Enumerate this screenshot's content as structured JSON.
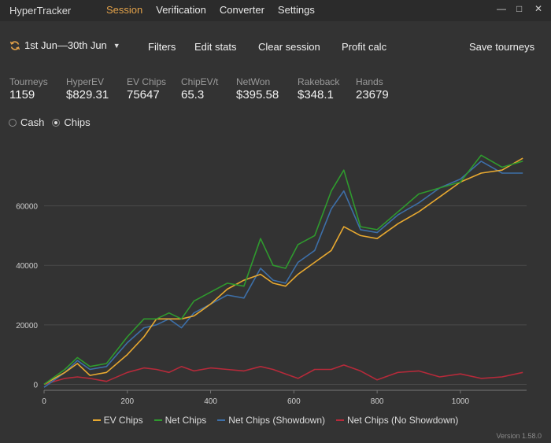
{
  "app_title": "HyperTracker",
  "nav": [
    {
      "label": "Session",
      "active": true
    },
    {
      "label": "Verification",
      "active": false
    },
    {
      "label": "Converter",
      "active": false
    },
    {
      "label": "Settings",
      "active": false
    }
  ],
  "toolbar": {
    "date_range": "1st Jun—30th Jun",
    "filters": "Filters",
    "edit_stats": "Edit stats",
    "clear_session": "Clear session",
    "profit_calc": "Profit calc",
    "save_tourneys": "Save tourneys"
  },
  "stats": [
    {
      "label": "Tourneys",
      "value": "1159"
    },
    {
      "label": "HyperEV",
      "value": "$829.31"
    },
    {
      "label": "EV Chips",
      "value": "75647"
    },
    {
      "label": "ChipEV/t",
      "value": "65.3"
    },
    {
      "label": "NetWon",
      "value": "$395.58"
    },
    {
      "label": "Rakeback",
      "value": "$348.1"
    },
    {
      "label": "Hands",
      "value": "23679"
    }
  ],
  "mode": {
    "options": [
      {
        "label": "Cash",
        "selected": false
      },
      {
        "label": "Chips",
        "selected": true
      }
    ]
  },
  "chart_data": {
    "type": "line",
    "xlim": [
      0,
      1159
    ],
    "ylim": [
      -2000,
      80000
    ],
    "x_ticks": [
      0,
      200,
      400,
      600,
      800,
      1000
    ],
    "y_ticks": [
      0,
      20000,
      40000,
      60000
    ],
    "grid": "horizontal",
    "legend_position": "bottom",
    "series": [
      {
        "name": "EV Chips",
        "color": "#e8a930",
        "x": [
          0,
          50,
          80,
          110,
          150,
          200,
          240,
          270,
          300,
          330,
          360,
          400,
          440,
          480,
          520,
          550,
          580,
          610,
          650,
          690,
          720,
          760,
          800,
          850,
          900,
          950,
          1000,
          1050,
          1100,
          1150
        ],
        "y": [
          0,
          4000,
          7000,
          3000,
          4000,
          10000,
          16000,
          22000,
          22000,
          22000,
          23000,
          27000,
          32000,
          35000,
          37000,
          34000,
          33000,
          37000,
          41000,
          45000,
          53000,
          50000,
          49000,
          54000,
          58000,
          63000,
          68000,
          71000,
          72000,
          76000
        ]
      },
      {
        "name": "Net Chips",
        "color": "#2f9a2e",
        "x": [
          0,
          50,
          80,
          110,
          150,
          200,
          240,
          270,
          300,
          330,
          360,
          400,
          440,
          480,
          520,
          550,
          580,
          610,
          650,
          690,
          720,
          760,
          800,
          850,
          900,
          950,
          1000,
          1050,
          1100,
          1150
        ],
        "y": [
          0,
          5000,
          9000,
          6000,
          7000,
          16000,
          22000,
          22000,
          24000,
          22000,
          28000,
          31000,
          34000,
          33000,
          49000,
          40000,
          39000,
          47000,
          50000,
          65000,
          72000,
          53000,
          52000,
          58000,
          64000,
          66000,
          68000,
          77000,
          73000,
          75000
        ]
      },
      {
        "name": "Net Chips (Showdown)",
        "color": "#3d6fa8",
        "x": [
          0,
          50,
          80,
          110,
          150,
          200,
          240,
          270,
          300,
          330,
          360,
          400,
          440,
          480,
          520,
          550,
          580,
          610,
          650,
          690,
          720,
          760,
          800,
          850,
          900,
          950,
          1000,
          1050,
          1100,
          1150
        ],
        "y": [
          -1000,
          4000,
          8000,
          5000,
          6000,
          14000,
          19000,
          20000,
          22000,
          19000,
          24000,
          27000,
          30000,
          29000,
          39000,
          35000,
          34000,
          41000,
          45000,
          59000,
          65000,
          52000,
          51000,
          57000,
          61000,
          66000,
          69000,
          75000,
          71000,
          71000
        ]
      },
      {
        "name": "Net Chips (No Showdown)",
        "color": "#b62a3a",
        "x": [
          0,
          50,
          80,
          110,
          150,
          200,
          240,
          270,
          300,
          330,
          360,
          400,
          440,
          480,
          520,
          550,
          580,
          610,
          650,
          690,
          720,
          760,
          800,
          850,
          900,
          950,
          1000,
          1050,
          1100,
          1150
        ],
        "y": [
          0,
          2000,
          2500,
          2000,
          1000,
          4000,
          5500,
          5000,
          4000,
          6000,
          4500,
          5500,
          5000,
          4500,
          6000,
          5000,
          3500,
          2000,
          5000,
          5000,
          6500,
          4500,
          1500,
          4000,
          4500,
          2500,
          3500,
          2000,
          2500,
          4000
        ]
      }
    ]
  },
  "version": "Version 1.58.0"
}
